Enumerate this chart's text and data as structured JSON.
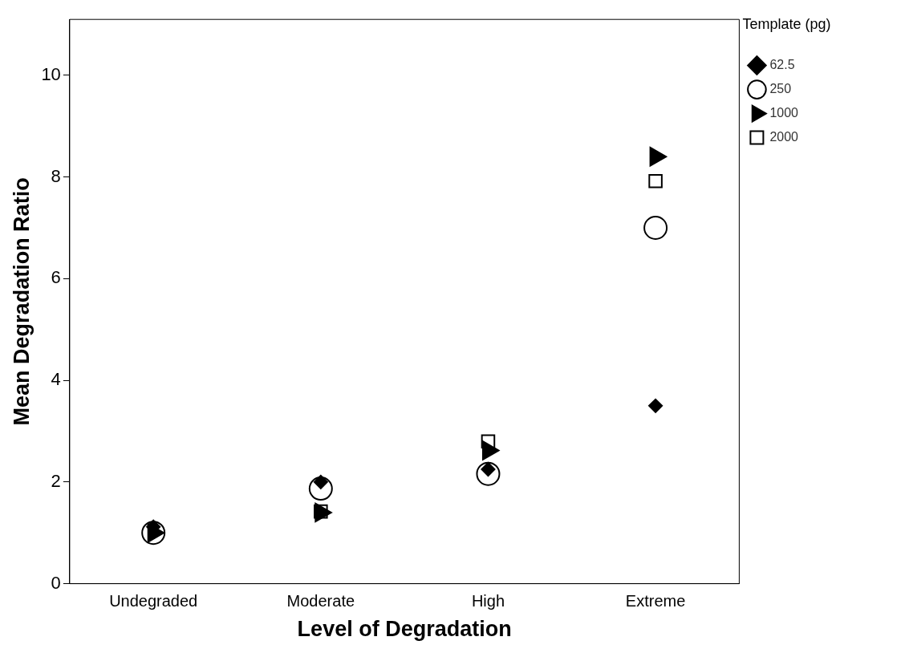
{
  "chart_data": {
    "type": "scatter",
    "xlabel": "Level of Degradation",
    "ylabel": "Mean Degradation Ratio",
    "legend_title": "Template (pg)",
    "categories": [
      "Undegraded",
      "Moderate",
      "High",
      "Extreme"
    ],
    "series": [
      {
        "name": "62.5",
        "color": "#000000",
        "marker": "diamond",
        "values": [
          1.12,
          2.0,
          2.25,
          3.5
        ]
      },
      {
        "name": "250",
        "color": "#000000",
        "marker": "circle",
        "values": [
          1.0,
          1.87,
          2.16,
          7.0
        ]
      },
      {
        "name": "1000",
        "color": "#000000",
        "marker": "triangle",
        "values": [
          1.0,
          1.4,
          2.62,
          8.4
        ]
      },
      {
        "name": "2000",
        "color": "#000000",
        "marker": "square",
        "values": [
          null,
          1.42,
          2.8,
          7.92
        ]
      }
    ],
    "ylim": [
      0,
      11.1
    ],
    "yticks": [
      0,
      2,
      4,
      6,
      8,
      10
    ],
    "grid": false,
    "legend": "right"
  }
}
